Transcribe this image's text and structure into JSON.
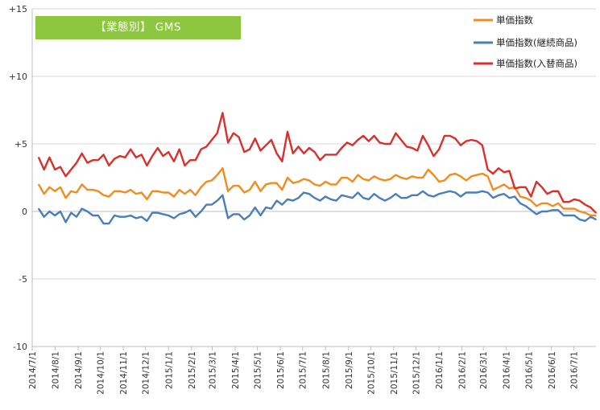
{
  "header": {
    "badge": "【業態別】 GMS"
  },
  "chart_data": {
    "type": "line",
    "title": "",
    "xlabel": "",
    "ylabel": "",
    "ylim": [
      -10,
      15
    ],
    "y_ticks": [
      15,
      10,
      5,
      0,
      -5,
      -10
    ],
    "y_tick_labels": [
      "+15",
      "+10",
      "+5",
      "0",
      "-5",
      "-10"
    ],
    "grid": "horizontal",
    "legend_position": "top-right",
    "x_tick_labels": [
      "2014/7/1",
      "2014/8/1",
      "2014/9/1",
      "2014/10/1",
      "2014/11/1",
      "2014/12/1",
      "2015/1/1",
      "2015/2/1",
      "2015/3/1",
      "2015/4/1",
      "2015/5/1",
      "2015/6/1",
      "2015/7/1",
      "2015/8/1",
      "2015/9/1",
      "2015/10/1",
      "2015/11/1",
      "2015/12/1",
      "2016/1/1",
      "2016/2/1",
      "2016/3/1",
      "2016/4/1",
      "2016/5/1",
      "2016/6/1",
      "2016/7/1"
    ],
    "x_range": [
      "2014-07-01",
      "2016-07-31"
    ],
    "series": [
      {
        "name": "単価指数",
        "color": "#f28c1e",
        "values": [
          2.0,
          1.3,
          1.8,
          1.5,
          1.8,
          1.0,
          1.5,
          1.4,
          2.0,
          1.6,
          1.6,
          1.5,
          1.2,
          1.1,
          1.5,
          1.5,
          1.4,
          1.6,
          1.3,
          1.4,
          0.9,
          1.5,
          1.5,
          1.4,
          1.4,
          1.1,
          1.6,
          1.3,
          1.6,
          1.2,
          1.8,
          2.2,
          2.3,
          2.7,
          3.2,
          1.5,
          1.9,
          1.9,
          1.4,
          1.6,
          2.2,
          1.5,
          2.0,
          2.1,
          2.1,
          1.6,
          2.5,
          2.1,
          2.2,
          2.4,
          2.3,
          2.0,
          1.9,
          2.2,
          2.0,
          2.0,
          2.5,
          2.5,
          2.2,
          2.7,
          2.4,
          2.3,
          2.6,
          2.4,
          2.3,
          2.4,
          2.7,
          2.5,
          2.4,
          2.6,
          2.5,
          2.5,
          3.1,
          2.7,
          2.2,
          2.3,
          2.7,
          2.8,
          2.6,
          2.3,
          2.6,
          2.7,
          2.8,
          2.6,
          1.6,
          1.8,
          2.0,
          1.7,
          1.8,
          1.1,
          1.0,
          0.8,
          0.4,
          0.6,
          0.6,
          0.4,
          0.6,
          0.2,
          0.2,
          0.2,
          0.0,
          -0.1,
          -0.3,
          -0.3
        ]
      },
      {
        "name": "単価指数(継続商品)",
        "color": "#4a7ebb",
        "values": [
          0.2,
          -0.4,
          0.0,
          -0.3,
          0.0,
          -0.8,
          -0.1,
          -0.4,
          0.2,
          0.0,
          -0.3,
          -0.3,
          -0.9,
          -0.9,
          -0.3,
          -0.4,
          -0.4,
          -0.3,
          -0.5,
          -0.4,
          -0.7,
          -0.1,
          -0.1,
          -0.2,
          -0.3,
          -0.5,
          -0.2,
          -0.1,
          0.1,
          -0.4,
          0.0,
          0.5,
          0.5,
          0.8,
          1.2,
          -0.5,
          -0.2,
          -0.2,
          -0.6,
          -0.3,
          0.3,
          -0.3,
          0.3,
          0.2,
          0.8,
          0.5,
          0.9,
          0.8,
          1.0,
          1.4,
          1.3,
          1.0,
          0.8,
          1.1,
          0.9,
          0.8,
          1.2,
          1.1,
          1.0,
          1.4,
          1.0,
          0.9,
          1.3,
          1.0,
          0.8,
          1.0,
          1.3,
          1.0,
          1.0,
          1.2,
          1.2,
          1.5,
          1.2,
          1.1,
          1.3,
          1.4,
          1.5,
          1.4,
          1.1,
          1.4,
          1.4,
          1.4,
          1.5,
          1.4,
          1.0,
          1.2,
          1.3,
          1.0,
          1.1,
          0.6,
          0.4,
          0.1,
          -0.2,
          0.0,
          0.0,
          0.1,
          0.1,
          -0.3,
          -0.3,
          -0.3,
          -0.6,
          -0.7,
          -0.4,
          -0.6
        ]
      },
      {
        "name": "単価指数(入替商品)",
        "color": "#d9302c",
        "values": [
          4.0,
          3.1,
          4.0,
          3.1,
          3.3,
          2.6,
          3.1,
          3.6,
          4.3,
          3.6,
          3.8,
          3.8,
          4.2,
          3.4,
          3.9,
          4.1,
          4.0,
          4.6,
          4.0,
          4.2,
          3.4,
          4.1,
          4.7,
          4.1,
          4.4,
          3.7,
          4.6,
          3.4,
          3.8,
          3.8,
          4.6,
          4.8,
          5.3,
          5.8,
          7.3,
          5.1,
          5.8,
          5.5,
          4.4,
          4.6,
          5.4,
          4.5,
          4.9,
          5.3,
          4.3,
          3.7,
          5.9,
          4.3,
          4.8,
          4.3,
          4.7,
          4.4,
          3.8,
          4.2,
          4.2,
          4.2,
          4.7,
          5.1,
          4.9,
          5.3,
          5.6,
          5.2,
          5.6,
          5.1,
          5.0,
          5.0,
          5.8,
          5.3,
          4.8,
          4.7,
          4.5,
          5.6,
          4.9,
          4.1,
          4.6,
          5.6,
          5.6,
          5.4,
          4.9,
          5.2,
          5.3,
          5.2,
          4.9,
          3.1,
          2.8,
          3.2,
          2.9,
          3.0,
          1.7,
          1.8,
          1.8,
          1.1,
          2.2,
          1.8,
          1.3,
          1.5,
          1.5,
          0.7,
          0.7,
          0.9,
          0.8,
          0.5,
          0.3,
          -0.1
        ]
      }
    ]
  }
}
